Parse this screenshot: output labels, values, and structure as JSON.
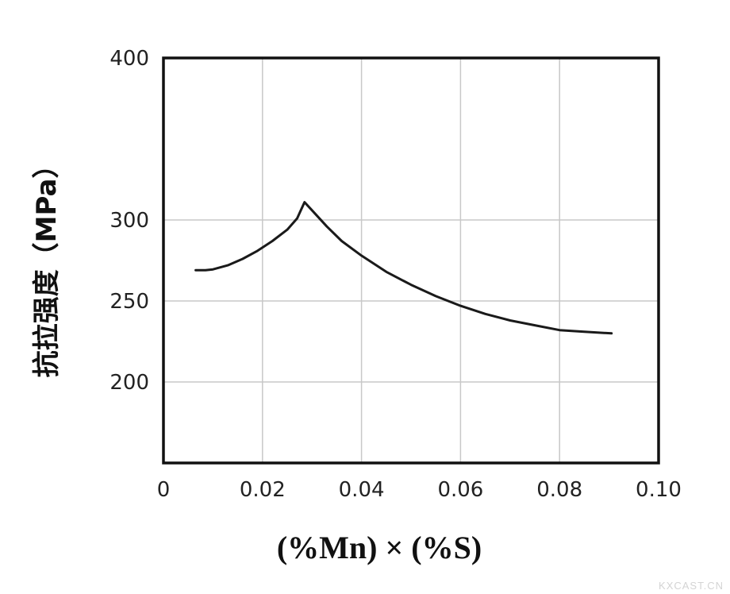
{
  "chart_data": {
    "type": "line",
    "xlabel": "(%Mn) × (%S)",
    "ylabel": "抗拉强度（MPa）",
    "xlim": [
      0,
      0.1
    ],
    "ylim": [
      150,
      400
    ],
    "x_ticks": [
      0,
      0.02,
      0.04,
      0.06,
      0.08,
      0.1
    ],
    "x_tick_labels": [
      "0",
      "0.02",
      "0.04",
      "0.06",
      "0.08",
      "0.10"
    ],
    "y_ticks": [
      200,
      250,
      300,
      400
    ],
    "y_tick_labels": [
      "200",
      "250",
      "300",
      "400"
    ],
    "grid": true,
    "legend": "none",
    "line_color": "#1a1a1a",
    "series": [
      {
        "x": [
          0.0065,
          0.0085,
          0.01,
          0.013,
          0.016,
          0.019,
          0.022,
          0.025,
          0.027,
          0.0285,
          0.03,
          0.033,
          0.036,
          0.04,
          0.045,
          0.05,
          0.055,
          0.06,
          0.065,
          0.07,
          0.075,
          0.08,
          0.085,
          0.0905
        ],
        "values": [
          269,
          269,
          269.5,
          272,
          276,
          281,
          287,
          294,
          301,
          311,
          306,
          296,
          287,
          278,
          268,
          260,
          253,
          247,
          242,
          238,
          235,
          232,
          231,
          230
        ]
      }
    ]
  },
  "watermark": "KXCAST.CN"
}
